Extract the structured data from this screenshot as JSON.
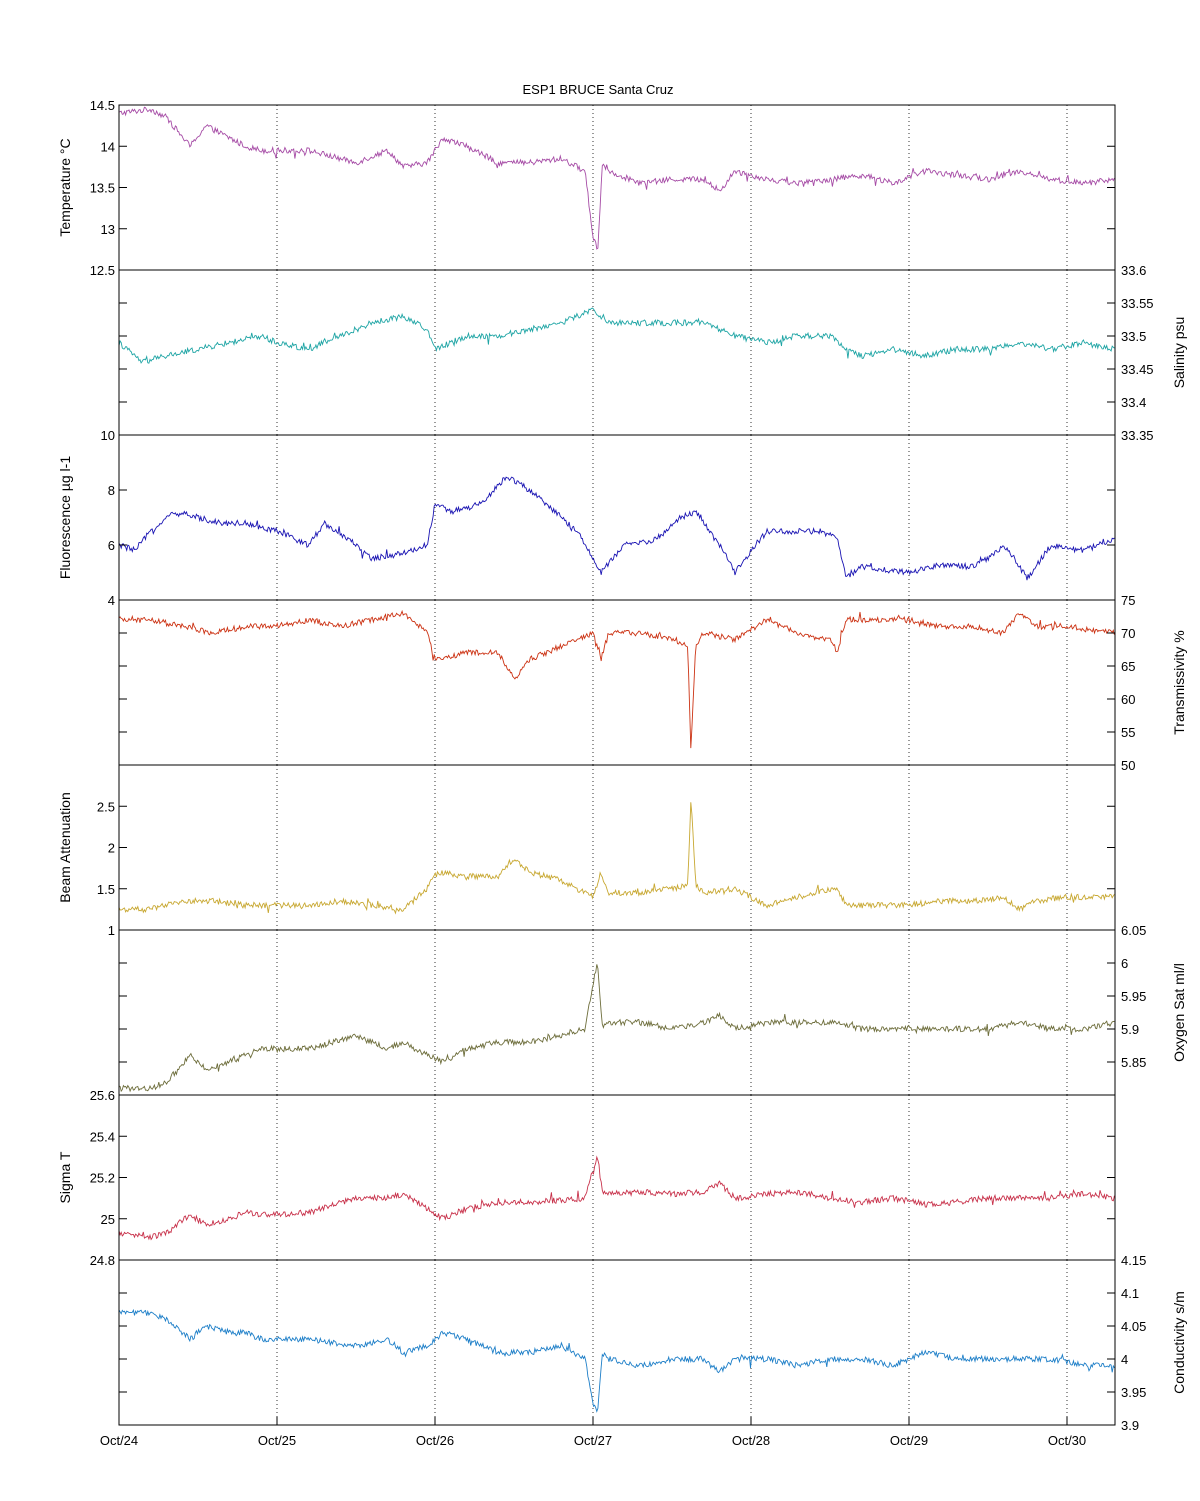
{
  "title": "ESP1 BRUCE Santa Cruz",
  "colors": {
    "temperature": "#a64ca6",
    "salinity": "#1fa5a5",
    "fluorescence": "#1a14b3",
    "transmissivity": "#cc3314",
    "beam_attenuation": "#c8a832",
    "oxygen": "#6e6e3c",
    "sigma_t": "#c8324b",
    "conductivity": "#1e7fc8"
  },
  "chart_data": {
    "type": "line",
    "title": "ESP1 BRUCE Santa Cruz",
    "x_axis": {
      "tick_labels": [
        "Oct/24",
        "Oct/25",
        "Oct/26",
        "Oct/27",
        "Oct/28",
        "Oct/29",
        "Oct/30"
      ],
      "range": [
        "Oct/24",
        "Oct/30 06:00"
      ],
      "grid": "vertical dotted at each day"
    },
    "panels": [
      {
        "id": "temperature",
        "ylabel": "Temperature °C",
        "side": "left",
        "ylim": [
          12.5,
          14.5
        ],
        "ticks": [
          "12.5",
          "13",
          "13.5",
          "14",
          "14.5"
        ],
        "series": {
          "x_days": [
            0,
            0.2,
            0.3,
            0.45,
            0.55,
            0.7,
            0.8,
            0.9,
            1.0,
            1.2,
            1.5,
            1.7,
            1.8,
            1.95,
            2.05,
            2.2,
            2.4,
            2.6,
            2.8,
            2.95,
            3.0,
            3.03,
            3.06,
            3.1,
            3.3,
            3.5,
            3.7,
            3.8,
            3.9,
            4.1,
            4.3,
            4.5,
            4.7,
            4.9,
            5.1,
            5.3,
            5.5,
            5.7,
            5.9,
            6.1,
            6.3
          ],
          "y": [
            14.4,
            14.45,
            14.35,
            14.0,
            14.25,
            14.1,
            14.0,
            13.95,
            13.95,
            13.95,
            13.8,
            13.95,
            13.75,
            13.8,
            14.1,
            14.0,
            13.8,
            13.8,
            13.85,
            13.7,
            12.9,
            12.75,
            13.8,
            13.7,
            13.55,
            13.6,
            13.6,
            13.45,
            13.7,
            13.6,
            13.55,
            13.6,
            13.65,
            13.55,
            13.7,
            13.65,
            13.6,
            13.7,
            13.6,
            13.55,
            13.6
          ]
        }
      },
      {
        "id": "salinity",
        "ylabel": "Salinity psu",
        "side": "right",
        "ylim": [
          33.35,
          33.6
        ],
        "ticks": [
          "33.35",
          "33.4",
          "33.45",
          "33.5",
          "33.55",
          "33.6"
        ],
        "series": {
          "x_days": [
            0,
            0.15,
            0.3,
            0.5,
            0.7,
            0.9,
            1.0,
            1.2,
            1.4,
            1.6,
            1.8,
            1.95,
            2.0,
            2.2,
            2.4,
            2.6,
            2.8,
            3.0,
            3.1,
            3.3,
            3.5,
            3.7,
            3.9,
            4.1,
            4.3,
            4.5,
            4.6,
            4.7,
            4.9,
            5.1,
            5.3,
            5.5,
            5.7,
            5.9,
            6.1,
            6.3
          ],
          "y": [
            33.49,
            33.46,
            33.47,
            33.48,
            33.49,
            33.5,
            33.49,
            33.48,
            33.5,
            33.52,
            33.53,
            33.51,
            33.48,
            33.5,
            33.5,
            33.51,
            33.52,
            33.54,
            33.52,
            33.52,
            33.52,
            33.52,
            33.5,
            33.49,
            33.5,
            33.5,
            33.48,
            33.47,
            33.48,
            33.47,
            33.48,
            33.48,
            33.49,
            33.48,
            33.49,
            33.48
          ]
        }
      },
      {
        "id": "fluorescence",
        "ylabel": "Fluorescence µg l-1",
        "side": "left",
        "ylim": [
          4,
          10
        ],
        "ticks": [
          "4",
          "6",
          "8",
          "10"
        ],
        "series": {
          "x_days": [
            0,
            0.1,
            0.2,
            0.35,
            0.5,
            0.65,
            0.8,
            1.0,
            1.2,
            1.3,
            1.5,
            1.6,
            1.8,
            1.95,
            2.0,
            2.1,
            2.3,
            2.45,
            2.55,
            2.7,
            2.9,
            3.05,
            3.2,
            3.4,
            3.55,
            3.65,
            3.8,
            3.9,
            4.1,
            4.3,
            4.45,
            4.55,
            4.6,
            4.7,
            5.0,
            5.2,
            5.4,
            5.5,
            5.6,
            5.75,
            5.9,
            6.1,
            6.3
          ],
          "y": [
            6.0,
            5.8,
            6.5,
            7.2,
            7.0,
            6.8,
            6.8,
            6.5,
            6.0,
            6.8,
            6.0,
            5.5,
            5.7,
            6.0,
            7.5,
            7.2,
            7.5,
            8.5,
            8.2,
            7.5,
            6.5,
            5.0,
            6.0,
            6.2,
            7.0,
            7.2,
            6.0,
            5.0,
            6.5,
            6.5,
            6.5,
            6.2,
            4.8,
            5.2,
            5.0,
            5.3,
            5.2,
            5.5,
            6.0,
            4.8,
            6.0,
            5.8,
            6.2
          ]
        }
      },
      {
        "id": "transmissivity",
        "ylabel": "Transmissivity %",
        "side": "right",
        "ylim": [
          50,
          75
        ],
        "ticks": [
          "50",
          "55",
          "60",
          "65",
          "70",
          "75"
        ],
        "series": {
          "x_days": [
            0,
            0.2,
            0.4,
            0.6,
            0.8,
            1.0,
            1.2,
            1.4,
            1.6,
            1.8,
            1.95,
            2.0,
            2.2,
            2.4,
            2.5,
            2.6,
            2.8,
            3.0,
            3.05,
            3.1,
            3.3,
            3.5,
            3.6,
            3.62,
            3.65,
            3.7,
            3.9,
            4.1,
            4.3,
            4.5,
            4.55,
            4.6,
            4.8,
            5.0,
            5.2,
            5.4,
            5.6,
            5.7,
            5.8,
            6.0,
            6.3
          ],
          "y": [
            72,
            72,
            71,
            70,
            71,
            71,
            72,
            71,
            72,
            73,
            70,
            66,
            67,
            67,
            63,
            66,
            68,
            70,
            66,
            70,
            70,
            69,
            68,
            52,
            68,
            70,
            69,
            72,
            70,
            69,
            67,
            72,
            72,
            72,
            71,
            71,
            70,
            73,
            71,
            71,
            70
          ]
        }
      },
      {
        "id": "beam_attenuation",
        "ylabel": "Beam Attenuation",
        "side": "left",
        "ylim": [
          1,
          3
        ],
        "ticks": [
          "1",
          "1.5",
          "2",
          "2.5"
        ],
        "series": {
          "x_days": [
            0,
            0.2,
            0.4,
            0.6,
            0.8,
            1.0,
            1.2,
            1.4,
            1.6,
            1.8,
            1.95,
            2.0,
            2.2,
            2.4,
            2.5,
            2.6,
            2.8,
            3.0,
            3.05,
            3.1,
            3.3,
            3.5,
            3.6,
            3.62,
            3.65,
            3.7,
            3.9,
            4.1,
            4.3,
            4.5,
            4.55,
            4.6,
            4.8,
            5.0,
            5.2,
            5.4,
            5.6,
            5.7,
            5.8,
            6.0,
            6.3
          ],
          "y": [
            1.25,
            1.25,
            1.35,
            1.35,
            1.3,
            1.3,
            1.3,
            1.35,
            1.3,
            1.25,
            1.5,
            1.7,
            1.65,
            1.65,
            1.85,
            1.7,
            1.6,
            1.4,
            1.7,
            1.45,
            1.45,
            1.5,
            1.55,
            2.6,
            1.55,
            1.45,
            1.5,
            1.3,
            1.4,
            1.5,
            1.5,
            1.3,
            1.3,
            1.3,
            1.35,
            1.35,
            1.4,
            1.25,
            1.35,
            1.4,
            1.4
          ]
        }
      },
      {
        "id": "oxygen",
        "ylabel": "Oxygen Sat ml/l",
        "side": "right",
        "ylim": [
          5.8,
          6.05
        ],
        "ticks": [
          "5.85",
          "5.9",
          "5.95",
          "6",
          "6.05"
        ],
        "series": {
          "x_days": [
            0,
            0.2,
            0.3,
            0.45,
            0.55,
            0.7,
            0.9,
            1.0,
            1.2,
            1.5,
            1.7,
            1.8,
            1.95,
            2.05,
            2.2,
            2.4,
            2.6,
            2.8,
            2.95,
            3.0,
            3.03,
            3.06,
            3.1,
            3.3,
            3.5,
            3.7,
            3.8,
            3.9,
            4.1,
            4.3,
            4.5,
            4.7,
            4.9,
            5.1,
            5.3,
            5.5,
            5.7,
            5.9,
            6.1,
            6.3
          ],
          "y": [
            5.81,
            5.81,
            5.82,
            5.86,
            5.84,
            5.85,
            5.87,
            5.87,
            5.87,
            5.89,
            5.87,
            5.88,
            5.86,
            5.85,
            5.87,
            5.88,
            5.88,
            5.89,
            5.9,
            5.97,
            6.0,
            5.9,
            5.91,
            5.91,
            5.9,
            5.91,
            5.92,
            5.9,
            5.91,
            5.91,
            5.91,
            5.9,
            5.9,
            5.9,
            5.9,
            5.9,
            5.91,
            5.9,
            5.9,
            5.91
          ]
        }
      },
      {
        "id": "sigma_t",
        "ylabel": "Sigma T",
        "side": "left",
        "ylim": [
          24.8,
          25.6
        ],
        "ticks": [
          "24.8",
          "25",
          "25.2",
          "25.4",
          "25.6"
        ],
        "series": {
          "x_days": [
            0,
            0.2,
            0.3,
            0.45,
            0.55,
            0.7,
            0.8,
            0.9,
            1.0,
            1.2,
            1.5,
            1.7,
            1.8,
            1.95,
            2.05,
            2.2,
            2.4,
            2.6,
            2.8,
            2.95,
            3.0,
            3.03,
            3.06,
            3.1,
            3.3,
            3.5,
            3.7,
            3.8,
            3.9,
            4.1,
            4.3,
            4.5,
            4.7,
            4.9,
            5.1,
            5.3,
            5.5,
            5.7,
            5.9,
            6.1,
            6.3
          ],
          "y": [
            24.93,
            24.91,
            24.93,
            25.02,
            24.97,
            25.0,
            25.03,
            25.02,
            25.02,
            25.03,
            25.1,
            25.1,
            25.12,
            25.05,
            25.0,
            25.05,
            25.08,
            25.08,
            25.09,
            25.1,
            25.25,
            25.3,
            25.12,
            25.12,
            25.13,
            25.12,
            25.13,
            25.17,
            25.1,
            25.12,
            25.13,
            25.1,
            25.08,
            25.1,
            25.07,
            25.08,
            25.1,
            25.1,
            25.1,
            25.12,
            25.1
          ]
        }
      },
      {
        "id": "conductivity",
        "ylabel": "Conductivity s/m",
        "side": "right",
        "ylim": [
          3.9,
          4.15
        ],
        "ticks": [
          "3.9",
          "3.95",
          "4",
          "4.05",
          "4.1",
          "4.15"
        ],
        "series": {
          "x_days": [
            0,
            0.2,
            0.3,
            0.45,
            0.55,
            0.7,
            0.8,
            0.9,
            1.0,
            1.2,
            1.5,
            1.7,
            1.8,
            1.95,
            2.05,
            2.2,
            2.4,
            2.6,
            2.8,
            2.95,
            3.0,
            3.03,
            3.06,
            3.1,
            3.3,
            3.5,
            3.7,
            3.8,
            3.9,
            4.1,
            4.3,
            4.5,
            4.7,
            4.9,
            5.1,
            5.3,
            5.5,
            5.7,
            5.9,
            6.1,
            6.3
          ],
          "y": [
            4.07,
            4.07,
            4.06,
            4.03,
            4.05,
            4.04,
            4.04,
            4.03,
            4.03,
            4.03,
            4.02,
            4.03,
            4.01,
            4.02,
            4.04,
            4.03,
            4.01,
            4.01,
            4.02,
            4.0,
            3.93,
            3.92,
            4.01,
            4.0,
            3.99,
            4.0,
            4.0,
            3.98,
            4.0,
            4.0,
            3.99,
            4.0,
            4.0,
            3.99,
            4.01,
            4.0,
            4.0,
            4.0,
            4.0,
            3.99,
            3.99
          ]
        }
      }
    ]
  }
}
